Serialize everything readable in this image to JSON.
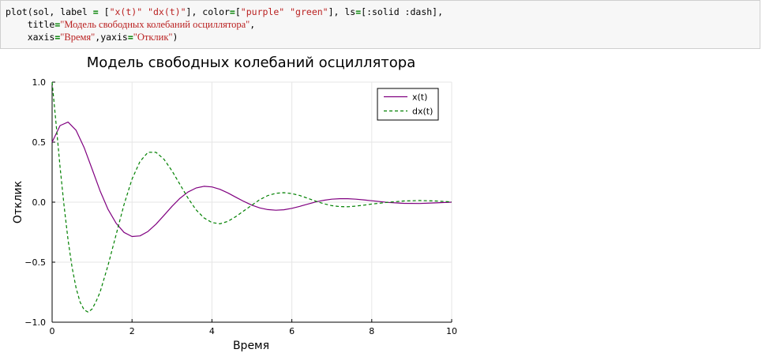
{
  "code_cell": {
    "line1": {
      "p1": "plot(sol, label ",
      "op1": "=",
      "p2": " [",
      "s1": "\"x(t)\"",
      "p3": " ",
      "s2": "\"dx(t)\"",
      "p4": "], color",
      "op2": "=",
      "p5": "[",
      "s3": "\"purple\"",
      "p6": " ",
      "s4": "\"green\"",
      "p7": "], ls",
      "op3": "=",
      "p8": "[:solid :dash],"
    },
    "line2": {
      "p1": "    title",
      "op1": "=",
      "s1": "\"Модель свободных колебаний осциллятора\"",
      "p2": ","
    },
    "line3": {
      "p1": "    xaxis",
      "op1": "=",
      "s1": "\"Время\"",
      "p2": ",yaxis",
      "op2": "=",
      "s2": "\"Отклик\"",
      "p3": ")"
    }
  },
  "chart_data": {
    "type": "line",
    "title": "Модель свободных колебаний осциллятора",
    "xlabel": "Время",
    "ylabel": "Отклик",
    "xlim": [
      0,
      10
    ],
    "ylim": [
      -1.0,
      1.0
    ],
    "xticks": [
      "0",
      "2",
      "4",
      "6",
      "8",
      "10"
    ],
    "yticks": [
      "1.0",
      "0.5",
      "0.0",
      "−0.5",
      "−1.0"
    ],
    "grid": true,
    "legend": "top-right",
    "series": [
      {
        "name": "x(t)",
        "color": "#800080",
        "style": "solid",
        "x": [
          0,
          0.2,
          0.4,
          0.6,
          0.8,
          1.0,
          1.2,
          1.4,
          1.6,
          1.8,
          2.0,
          2.2,
          2.4,
          2.6,
          2.8,
          3.0,
          3.2,
          3.4,
          3.6,
          3.8,
          4.0,
          4.2,
          4.4,
          4.6,
          4.8,
          5.0,
          5.2,
          5.4,
          5.6,
          5.8,
          6.0,
          6.2,
          6.4,
          6.6,
          6.8,
          7.0,
          7.2,
          7.4,
          7.6,
          7.8,
          8.0,
          8.4,
          8.8,
          9.2,
          9.6,
          10.0
        ],
        "values": [
          0.5,
          0.638,
          0.667,
          0.598,
          0.456,
          0.276,
          0.095,
          -0.06,
          -0.175,
          -0.252,
          -0.286,
          -0.281,
          -0.244,
          -0.183,
          -0.11,
          -0.035,
          0.032,
          0.084,
          0.118,
          0.132,
          0.127,
          0.107,
          0.077,
          0.041,
          0.006,
          -0.025,
          -0.048,
          -0.062,
          -0.067,
          -0.063,
          -0.051,
          -0.035,
          -0.016,
          0.002,
          0.016,
          0.025,
          0.029,
          0.029,
          0.025,
          0.019,
          0.012,
          -0.002,
          -0.01,
          -0.011,
          -0.006,
          0.0
        ]
      },
      {
        "name": "dx(t)",
        "color": "#008000",
        "style": "dash",
        "x": [
          0,
          0.1,
          0.2,
          0.3,
          0.4,
          0.5,
          0.6,
          0.7,
          0.8,
          0.9,
          1.0,
          1.1,
          1.2,
          1.4,
          1.6,
          1.8,
          2.0,
          2.2,
          2.4,
          2.6,
          2.8,
          3.0,
          3.2,
          3.4,
          3.6,
          3.8,
          4.0,
          4.2,
          4.4,
          4.6,
          4.8,
          5.0,
          5.2,
          5.4,
          5.6,
          5.8,
          6.0,
          6.2,
          6.4,
          6.6,
          6.8,
          7.0,
          7.2,
          7.4,
          7.6,
          7.8,
          8.0,
          8.4,
          8.8,
          9.2,
          9.6,
          10.0
        ],
        "values": [
          1.0,
          0.648,
          0.29,
          -0.034,
          -0.315,
          -0.544,
          -0.716,
          -0.832,
          -0.897,
          -0.916,
          -0.891,
          -0.827,
          -0.75,
          -0.526,
          -0.272,
          -0.019,
          0.192,
          0.339,
          0.416,
          0.415,
          0.357,
          0.261,
          0.148,
          0.035,
          -0.063,
          -0.131,
          -0.17,
          -0.18,
          -0.16,
          -0.12,
          -0.072,
          -0.025,
          0.022,
          0.055,
          0.074,
          0.079,
          0.072,
          0.055,
          0.032,
          0.008,
          -0.013,
          -0.029,
          -0.037,
          -0.038,
          -0.033,
          -0.025,
          -0.016,
          -0.001,
          0.01,
          0.014,
          0.01,
          0.002
        ]
      }
    ]
  }
}
